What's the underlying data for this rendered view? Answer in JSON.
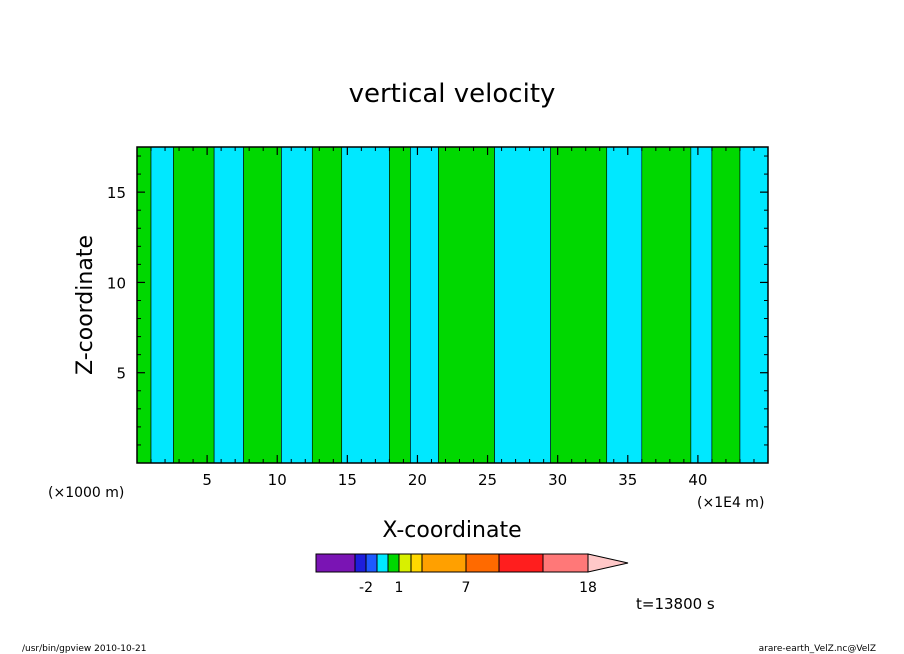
{
  "chart_data": {
    "type": "heatmap",
    "title": "vertical velocity",
    "xlabel": "X-coordinate",
    "ylabel": "Z-coordinate",
    "x_unit_left": "(×1000 m)",
    "x_unit_right": "(×1E4 m)",
    "xlim": [
      0,
      45
    ],
    "ylim": [
      0,
      17.5
    ],
    "x_ticks": [
      "5",
      "10",
      "15",
      "20",
      "25",
      "30",
      "35",
      "40"
    ],
    "y_ticks": [
      "5",
      "10",
      "15"
    ],
    "time_label": "t=13800 s",
    "colorbar": {
      "tick_labels": [
        "-2",
        "1",
        "7",
        "18"
      ],
      "colors": [
        "#7a14b4",
        "#1e1edc",
        "#1e5aff",
        "#00e8ff",
        "#00d800",
        "#d8f000",
        "#ffd800",
        "#ffa000",
        "#ff6a00",
        "#ff1e1e",
        "#ff7878",
        "#ffc8c8"
      ]
    },
    "field_colors": {
      "negative": "#00e8ff",
      "positive": "#00d800"
    },
    "bands": [
      {
        "x0": 0.0,
        "x1": 1.0,
        "v": 1
      },
      {
        "x0": 1.0,
        "x1": 2.6,
        "v": 0
      },
      {
        "x0": 2.6,
        "x1": 5.5,
        "v": 1
      },
      {
        "x0": 5.5,
        "x1": 7.6,
        "v": 0
      },
      {
        "x0": 7.6,
        "x1": 10.3,
        "v": 1
      },
      {
        "x0": 10.3,
        "x1": 12.5,
        "v": 0
      },
      {
        "x0": 12.5,
        "x1": 14.6,
        "v": 1
      },
      {
        "x0": 14.6,
        "x1": 18.0,
        "v": 0
      },
      {
        "x0": 18.0,
        "x1": 19.5,
        "v": 1
      },
      {
        "x0": 19.5,
        "x1": 21.5,
        "v": 0
      },
      {
        "x0": 21.5,
        "x1": 25.5,
        "v": 1
      },
      {
        "x0": 25.5,
        "x1": 29.5,
        "v": 0
      },
      {
        "x0": 29.5,
        "x1": 33.5,
        "v": 1
      },
      {
        "x0": 33.5,
        "x1": 36.0,
        "v": 0
      },
      {
        "x0": 36.0,
        "x1": 39.5,
        "v": 1
      },
      {
        "x0": 39.5,
        "x1": 41.0,
        "v": 0
      },
      {
        "x0": 41.0,
        "x1": 43.0,
        "v": 1
      },
      {
        "x0": 43.0,
        "x1": 45.0,
        "v": 0
      }
    ]
  },
  "footer": {
    "left": "/usr/bin/gpview   2010-10-21",
    "right": "arare-earth_VelZ.nc@VelZ"
  }
}
